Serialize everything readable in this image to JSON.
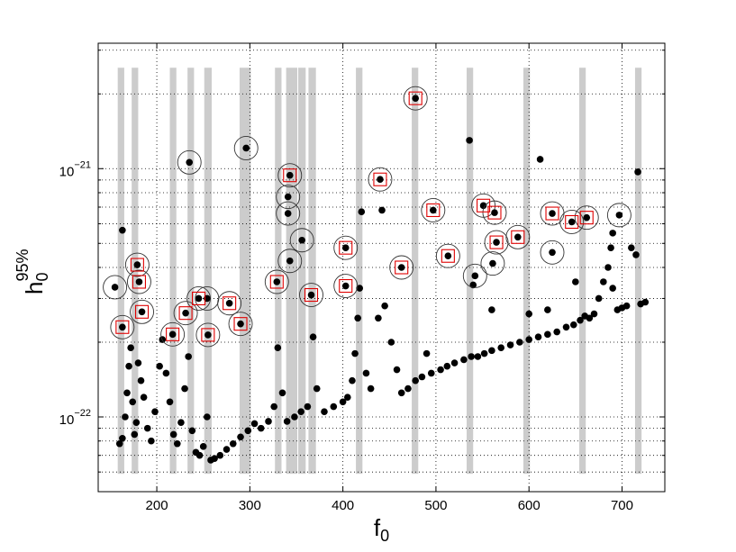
{
  "chart_data": {
    "type": "scatter",
    "xlabel": [
      "f",
      "0"
    ],
    "ylabel": [
      "h",
      "0",
      "95%"
    ],
    "xlim": [
      137,
      746
    ],
    "ylim": [
      5e-23,
      3.2e-21
    ],
    "log_y": true,
    "grid": true,
    "xticks": [
      200,
      300,
      400,
      500,
      600,
      700
    ],
    "yticks": [
      {
        "value": 1e-22,
        "label": "10−22"
      },
      {
        "value": 1e-21,
        "label": "10−21"
      }
    ],
    "yminor": [
      6e-23,
      7e-23,
      8e-23,
      9e-23,
      2e-22,
      3e-22,
      4e-22,
      5e-22,
      6e-22,
      7e-22,
      8e-22,
      9e-22,
      2e-21,
      3e-21
    ],
    "band_color": "#cccccc",
    "band_ylim": [
      5.9e-23,
      2.55e-21
    ],
    "bands": [
      [
        158,
        165
      ],
      [
        173,
        180
      ],
      [
        214,
        221
      ],
      [
        233,
        240
      ],
      [
        251,
        259
      ],
      [
        289,
        301
      ],
      [
        327,
        334
      ],
      [
        339,
        351
      ],
      [
        352,
        360
      ],
      [
        363,
        371
      ],
      [
        414,
        421
      ],
      [
        474,
        481
      ],
      [
        533,
        540
      ],
      [
        594,
        601
      ],
      [
        654,
        661
      ],
      [
        714,
        721
      ]
    ],
    "series": [
      {
        "marker": "dot",
        "color": "#000000",
        "x": [
          160,
          163,
          166,
          168,
          170,
          172,
          174,
          176,
          178,
          180,
          183,
          186,
          190,
          194,
          198,
          203,
          206,
          210,
          214,
          218,
          222,
          226,
          230,
          234,
          238,
          242,
          246,
          250,
          254,
          258,
          262,
          268,
          275,
          282,
          290,
          298,
          305,
          312,
          320,
          326,
          330,
          335,
          340,
          348,
          355,
          362,
          368,
          372,
          380,
          390,
          400,
          405,
          410,
          413,
          416,
          418,
          420,
          425,
          430,
          438,
          445,
          452,
          458,
          463,
          470,
          478,
          485,
          490,
          495,
          505,
          512,
          520,
          530,
          538,
          545,
          552,
          560,
          570,
          580,
          590,
          600,
          610,
          620,
          630,
          640,
          648,
          655,
          660,
          665,
          670,
          675,
          680,
          685,
          688,
          690,
          695,
          700,
          705,
          710,
          715,
          720,
          725,
          540,
          560,
          600,
          620,
          650,
          690,
          536,
          612,
          163,
          442,
          717
        ],
        "values": [
          7.8e-23,
          8.2e-23,
          1e-22,
          1.25e-22,
          1.6e-22,
          1.9e-22,
          1.15e-22,
          8.5e-23,
          9.5e-23,
          1.65e-22,
          1.4e-22,
          1.2e-22,
          9e-23,
          8e-23,
          1.05e-22,
          1.6e-22,
          2.05e-22,
          1.5e-22,
          1.15e-22,
          8.5e-23,
          7.8e-23,
          9.5e-23,
          1.3e-22,
          1.75e-22,
          8.8e-23,
          7.2e-23,
          7e-23,
          7.6e-23,
          1e-22,
          6.7e-23,
          6.8e-23,
          7e-23,
          7.4e-23,
          7.8e-23,
          8.3e-23,
          8.8e-23,
          9.4e-23,
          9e-23,
          9.6e-23,
          1.1e-22,
          1.9e-22,
          1.25e-22,
          9.6e-23,
          1e-22,
          1.05e-22,
          1.1e-22,
          2.1e-22,
          1.3e-22,
          1.05e-22,
          1.1e-22,
          1.15e-22,
          1.2e-22,
          1.4e-22,
          1.8e-22,
          2.5e-22,
          3.3e-22,
          6.7e-22,
          1.5e-22,
          1.3e-22,
          2.5e-22,
          2.8e-22,
          2e-22,
          1.55e-22,
          1.25e-22,
          1.3e-22,
          1.4e-22,
          1.45e-22,
          1.8e-22,
          1.5e-22,
          1.55e-22,
          1.6e-22,
          1.65e-22,
          1.7e-22,
          1.75e-22,
          1.75e-22,
          1.8e-22,
          1.85e-22,
          1.9e-22,
          1.95e-22,
          2e-22,
          2.05e-22,
          2.1e-22,
          2.15e-22,
          2.2e-22,
          2.3e-22,
          2.35e-22,
          2.45e-22,
          2.55e-22,
          2.5e-22,
          2.6e-22,
          3e-22,
          3.5e-22,
          4e-22,
          4.8e-22,
          5.5e-22,
          2.7e-22,
          2.75e-22,
          2.8e-22,
          4.8e-22,
          4.5e-22,
          2.85e-22,
          2.9e-22,
          3.4e-22,
          2.7e-22,
          2.6e-22,
          2.7e-22,
          3.5e-22,
          3.3e-22,
          1.3e-21,
          1.09e-21,
          5.65e-22,
          6.8e-22,
          9.7e-22
        ]
      },
      {
        "marker": "circle",
        "color": "#333333",
        "x": [
          155,
          163,
          179,
          181,
          184,
          217,
          231,
          235,
          245,
          254,
          255,
          278,
          290,
          296,
          329,
          341,
          343,
          341,
          343,
          356,
          366,
          403,
          403,
          440,
          463,
          478,
          497,
          513,
          542,
          551,
          563,
          561,
          565,
          588,
          625,
          625,
          646,
          662,
          697
        ],
        "values": [
          3.33e-22,
          2.3e-22,
          4.1e-22,
          3.5e-22,
          2.65e-22,
          2.15e-22,
          2.62e-22,
          1.06e-21,
          3e-22,
          3e-22,
          2.14e-22,
          2.87e-22,
          2.37e-22,
          1.21e-21,
          3.5e-22,
          7.7e-22,
          9.4e-22,
          6.6e-22,
          4.25e-22,
          5.15e-22,
          3.1e-22,
          4.8e-22,
          3.37e-22,
          9.05e-22,
          4e-22,
          1.92e-21,
          6.8e-22,
          4.45e-22,
          3.7e-22,
          7.1e-22,
          6.65e-22,
          4.15e-22,
          5.05e-22,
          5.3e-22,
          6.6e-22,
          4.6e-22,
          6.1e-22,
          6.35e-22,
          6.5e-22
        ]
      },
      {
        "marker": "square",
        "color": "#e00000",
        "x": [
          163,
          179,
          181,
          184,
          217,
          231,
          245,
          255,
          278,
          290,
          329,
          343,
          366,
          403,
          403,
          440,
          463,
          478,
          497,
          513,
          551,
          563,
          565,
          588,
          625,
          646,
          662
        ],
        "values": [
          2.3e-22,
          4.1e-22,
          3.5e-22,
          2.65e-22,
          2.15e-22,
          2.62e-22,
          3e-22,
          2.14e-22,
          2.87e-22,
          2.37e-22,
          3.5e-22,
          9.4e-22,
          3.1e-22,
          4.8e-22,
          3.37e-22,
          9.05e-22,
          4e-22,
          1.92e-21,
          6.8e-22,
          4.45e-22,
          7.1e-22,
          6.65e-22,
          5.05e-22,
          5.3e-22,
          6.6e-22,
          6.1e-22,
          6.35e-22
        ]
      }
    ]
  }
}
